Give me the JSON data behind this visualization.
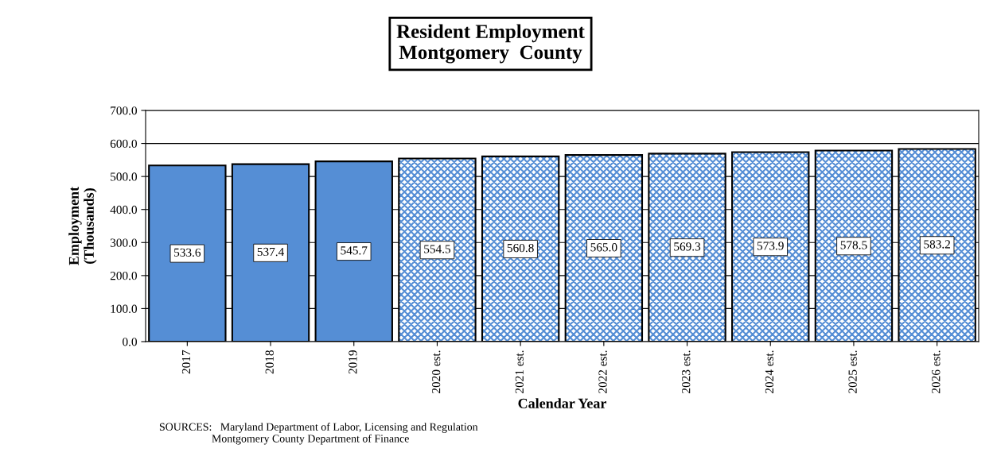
{
  "chart_data": {
    "type": "bar",
    "title": "Resident Employment\nMontgomery  County",
    "xlabel": "Calendar Year",
    "ylabel": "Employment\n(Thousands)",
    "categories": [
      "2017",
      "2018",
      "2019",
      "2020 est.",
      "2021 est.",
      "2022 est.",
      "2023 est.",
      "2024 est.",
      "2025 est.",
      "2026 est."
    ],
    "series": [
      {
        "color": "#558ed5",
        "values": [
          533.6,
          537.4,
          545.7,
          null,
          null,
          null,
          null,
          null,
          null,
          null
        ],
        "value_labels": [
          "533.6",
          "537.4",
          "545.7",
          null,
          null,
          null,
          null,
          null,
          null,
          null
        ]
      },
      {
        "color": "#558ed5",
        "values": [
          null,
          null,
          null,
          554.5,
          560.8,
          565.0,
          569.3,
          573.9,
          578.5,
          583.2
        ],
        "value_labels": [
          null,
          null,
          null,
          "554.5",
          "560.8",
          "565.0",
          "569.3",
          "573.9",
          "578.5",
          "583.2"
        ]
      }
    ],
    "stacked": true,
    "ylim": [
      0,
      700
    ],
    "yticks": [
      {
        "value": 0,
        "label": "0.0"
      },
      {
        "value": 100,
        "label": "100.0"
      },
      {
        "value": 200,
        "label": "200.0"
      },
      {
        "value": 300,
        "label": "300.0"
      },
      {
        "value": 400,
        "label": "400.0"
      },
      {
        "value": 500,
        "label": "500.0"
      },
      {
        "value": 600,
        "label": "600.0"
      },
      {
        "value": 700,
        "label": "700.0"
      }
    ],
    "grid": "y",
    "annotations": [
      "SOURCES:   Maryland Department of Labor, Licensing and Regulation\n                   Montgomery County Department of Finance"
    ]
  }
}
